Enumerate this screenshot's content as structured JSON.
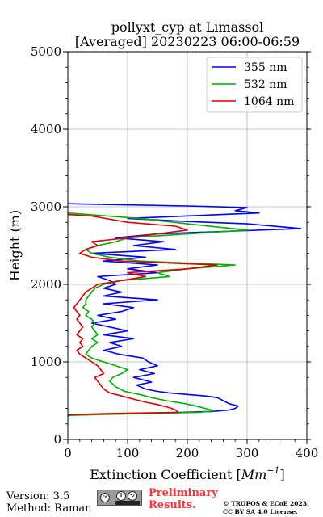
{
  "chart_data": {
    "type": "line",
    "title": "pollyxt_cyp at Limassol",
    "subtitle": "[Averaged] 20230223 06:00-06:59",
    "xlabel_text": "Extinction Coefficient [",
    "xlabel_unit": "Mm",
    "xlabel_exp": "−1",
    "xlabel_close": "]",
    "ylabel": "Height (m)",
    "xlim": [
      0,
      400
    ],
    "ylim": [
      0,
      5000
    ],
    "xticks": [
      0,
      100,
      200,
      300,
      400
    ],
    "yticks": [
      0,
      1000,
      2000,
      3000,
      4000,
      5000
    ],
    "grid": true,
    "legend_position": "top-right",
    "series": [
      {
        "name": "355 nm",
        "color": "#0000ff",
        "points": [
          [
            0,
            300
          ],
          [
            5,
            320
          ],
          [
            150,
            340
          ],
          [
            240,
            360
          ],
          [
            270,
            380
          ],
          [
            280,
            400
          ],
          [
            285,
            430
          ],
          [
            270,
            460
          ],
          [
            260,
            500
          ],
          [
            250,
            540
          ],
          [
            230,
            560
          ],
          [
            200,
            580
          ],
          [
            170,
            600
          ],
          [
            150,
            620
          ],
          [
            130,
            650
          ],
          [
            115,
            700
          ],
          [
            140,
            740
          ],
          [
            110,
            800
          ],
          [
            145,
            850
          ],
          [
            120,
            900
          ],
          [
            150,
            950
          ],
          [
            135,
            1000
          ],
          [
            125,
            1050
          ],
          [
            85,
            1100
          ],
          [
            60,
            1150
          ],
          [
            90,
            1200
          ],
          [
            70,
            1250
          ],
          [
            110,
            1300
          ],
          [
            60,
            1350
          ],
          [
            100,
            1400
          ],
          [
            70,
            1450
          ],
          [
            40,
            1500
          ],
          [
            80,
            1550
          ],
          [
            50,
            1600
          ],
          [
            90,
            1650
          ],
          [
            110,
            1700
          ],
          [
            60,
            1750
          ],
          [
            150,
            1800
          ],
          [
            60,
            1850
          ],
          [
            90,
            1900
          ],
          [
            60,
            1950
          ],
          [
            80,
            2000
          ],
          [
            70,
            2050
          ],
          [
            50,
            2100
          ],
          [
            150,
            2150
          ],
          [
            100,
            2200
          ],
          [
            150,
            2250
          ],
          [
            60,
            2300
          ],
          [
            130,
            2350
          ],
          [
            40,
            2400
          ],
          [
            180,
            2450
          ],
          [
            110,
            2500
          ],
          [
            160,
            2550
          ],
          [
            80,
            2600
          ],
          [
            150,
            2650
          ],
          [
            390,
            2720
          ],
          [
            300,
            2780
          ],
          [
            200,
            2810
          ],
          [
            100,
            2850
          ],
          [
            320,
            2920
          ],
          [
            280,
            2950
          ],
          [
            300,
            2990
          ],
          [
            200,
            3010
          ],
          [
            0,
            3040
          ]
        ]
      },
      {
        "name": "532 nm",
        "color": "#00b000",
        "points": [
          [
            0,
            310
          ],
          [
            100,
            330
          ],
          [
            220,
            350
          ],
          [
            245,
            370
          ],
          [
            230,
            400
          ],
          [
            215,
            430
          ],
          [
            190,
            470
          ],
          [
            165,
            500
          ],
          [
            140,
            540
          ],
          [
            120,
            580
          ],
          [
            95,
            620
          ],
          [
            80,
            680
          ],
          [
            70,
            750
          ],
          [
            75,
            800
          ],
          [
            90,
            850
          ],
          [
            100,
            900
          ],
          [
            80,
            950
          ],
          [
            60,
            1000
          ],
          [
            40,
            1050
          ],
          [
            30,
            1100
          ],
          [
            35,
            1150
          ],
          [
            40,
            1200
          ],
          [
            50,
            1250
          ],
          [
            40,
            1300
          ],
          [
            50,
            1350
          ],
          [
            45,
            1400
          ],
          [
            40,
            1450
          ],
          [
            45,
            1500
          ],
          [
            40,
            1550
          ],
          [
            30,
            1600
          ],
          [
            35,
            1650
          ],
          [
            25,
            1700
          ],
          [
            30,
            1750
          ],
          [
            30,
            1800
          ],
          [
            35,
            1850
          ],
          [
            40,
            1900
          ],
          [
            45,
            1950
          ],
          [
            60,
            2000
          ],
          [
            90,
            2050
          ],
          [
            170,
            2100
          ],
          [
            150,
            2150
          ],
          [
            200,
            2200
          ],
          [
            280,
            2250
          ],
          [
            120,
            2300
          ],
          [
            70,
            2350
          ],
          [
            40,
            2400
          ],
          [
            30,
            2450
          ],
          [
            50,
            2500
          ],
          [
            80,
            2550
          ],
          [
            100,
            2600
          ],
          [
            300,
            2700
          ],
          [
            200,
            2780
          ],
          [
            120,
            2850
          ],
          [
            0,
            2920
          ]
        ]
      },
      {
        "name": "1064 nm",
        "color": "#dd0000",
        "points": [
          [
            0,
            320
          ],
          [
            80,
            335
          ],
          [
            185,
            350
          ],
          [
            180,
            380
          ],
          [
            170,
            410
          ],
          [
            150,
            450
          ],
          [
            130,
            480
          ],
          [
            110,
            520
          ],
          [
            90,
            560
          ],
          [
            70,
            600
          ],
          [
            60,
            650
          ],
          [
            55,
            700
          ],
          [
            50,
            750
          ],
          [
            45,
            800
          ],
          [
            60,
            850
          ],
          [
            55,
            900
          ],
          [
            50,
            950
          ],
          [
            40,
            1000
          ],
          [
            30,
            1050
          ],
          [
            20,
            1100
          ],
          [
            15,
            1150
          ],
          [
            25,
            1200
          ],
          [
            20,
            1250
          ],
          [
            25,
            1300
          ],
          [
            15,
            1350
          ],
          [
            20,
            1400
          ],
          [
            25,
            1450
          ],
          [
            20,
            1500
          ],
          [
            15,
            1550
          ],
          [
            20,
            1600
          ],
          [
            15,
            1650
          ],
          [
            10,
            1700
          ],
          [
            15,
            1750
          ],
          [
            20,
            1800
          ],
          [
            25,
            1850
          ],
          [
            30,
            1900
          ],
          [
            40,
            1950
          ],
          [
            50,
            2000
          ],
          [
            90,
            2050
          ],
          [
            130,
            2100
          ],
          [
            100,
            2150
          ],
          [
            200,
            2200
          ],
          [
            250,
            2250
          ],
          [
            90,
            2300
          ],
          [
            40,
            2350
          ],
          [
            20,
            2400
          ],
          [
            30,
            2450
          ],
          [
            50,
            2500
          ],
          [
            40,
            2550
          ],
          [
            100,
            2600
          ],
          [
            200,
            2700
          ],
          [
            180,
            2750
          ],
          [
            100,
            2800
          ],
          [
            40,
            2880
          ],
          [
            0,
            2900
          ]
        ]
      }
    ]
  },
  "footer": {
    "version": "Version: 3.5",
    "method": "Method: Raman",
    "preliminary_line1": "Preliminary",
    "preliminary_line2": "Results.",
    "license_line1": "© TROPOS & ECoE 2023.",
    "license_line2": "CC BY SA 4.0 License."
  },
  "logo_text": {
    "cc": "cc",
    "by": "i",
    "sa": "⟲"
  }
}
